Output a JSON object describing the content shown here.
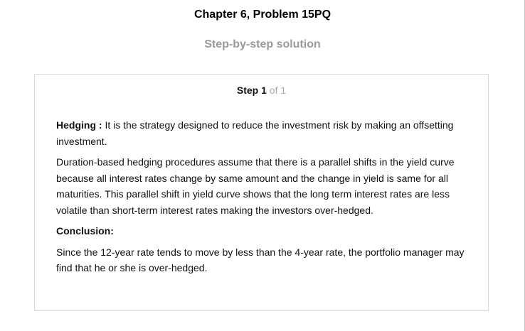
{
  "page": {
    "title": "Chapter 6, Problem 15PQ",
    "subtitle": "Step-by-step solution"
  },
  "step": {
    "label": "Step",
    "number": "1",
    "of_text": "of 1"
  },
  "content": {
    "hedging_term": "Hedging :",
    "hedging_definition": "It is the strategy designed to reduce the investment risk by making an offsetting investment.",
    "paragraph_2": "Duration-based hedging procedures assume that there is a parallel shifts in the yield curve because all interest rates change by same amount and the change in yield is same for all maturities. This parallel shift in yield curve shows that the long term interest rates are less volatile than short-term interest rates making the investors over-hedged.",
    "conclusion_heading": "Conclusion:",
    "conclusion_text": "Since the 12-year rate tends to move by less than the 4-year rate, the portfolio manager may find that he or she is over-hedged."
  }
}
